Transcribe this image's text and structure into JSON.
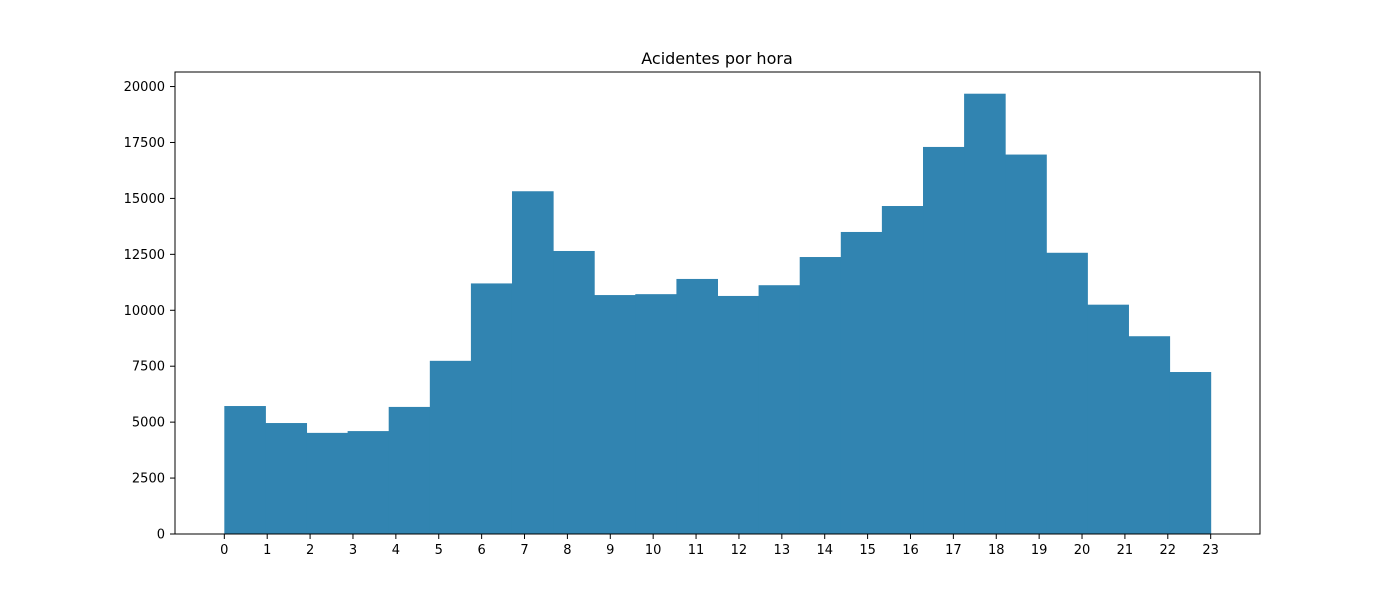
{
  "chart_data": {
    "type": "bar",
    "title": "Acidentes por hora",
    "xlabel": "",
    "ylabel": "",
    "bar_color": "#3184b1",
    "grid": false,
    "x_ticks": [
      "0",
      "1",
      "2",
      "3",
      "4",
      "5",
      "6",
      "7",
      "8",
      "9",
      "10",
      "11",
      "12",
      "13",
      "14",
      "15",
      "16",
      "17",
      "18",
      "19",
      "20",
      "21",
      "22",
      "23"
    ],
    "y_ticks": [
      "0",
      "2500",
      "5000",
      "7500",
      "10000",
      "12500",
      "15000",
      "17500",
      "20000"
    ],
    "xlim": [
      -1.15,
      24.15
    ],
    "ylim": [
      0,
      20650
    ],
    "bins": [
      {
        "start": 0.0,
        "end": 0.958,
        "value": 5720
      },
      {
        "start": 0.958,
        "end": 1.917,
        "value": 4960
      },
      {
        "start": 1.917,
        "end": 2.875,
        "value": 4520
      },
      {
        "start": 2.875,
        "end": 3.833,
        "value": 4600
      },
      {
        "start": 3.833,
        "end": 4.792,
        "value": 5680
      },
      {
        "start": 4.792,
        "end": 5.75,
        "value": 7740
      },
      {
        "start": 5.75,
        "end": 6.708,
        "value": 11200
      },
      {
        "start": 6.708,
        "end": 7.667,
        "value": 15320
      },
      {
        "start": 7.667,
        "end": 8.625,
        "value": 12650
      },
      {
        "start": 8.625,
        "end": 9.583,
        "value": 10680
      },
      {
        "start": 9.583,
        "end": 10.542,
        "value": 10720
      },
      {
        "start": 10.542,
        "end": 11.5,
        "value": 11400
      },
      {
        "start": 11.5,
        "end": 12.458,
        "value": 10640
      },
      {
        "start": 12.458,
        "end": 13.417,
        "value": 11120
      },
      {
        "start": 13.417,
        "end": 14.375,
        "value": 12380
      },
      {
        "start": 14.375,
        "end": 15.333,
        "value": 13500
      },
      {
        "start": 15.333,
        "end": 16.292,
        "value": 14660
      },
      {
        "start": 16.292,
        "end": 17.25,
        "value": 17300
      },
      {
        "start": 17.25,
        "end": 18.208,
        "value": 19680
      },
      {
        "start": 18.208,
        "end": 19.167,
        "value": 16960
      },
      {
        "start": 19.167,
        "end": 20.125,
        "value": 12570
      },
      {
        "start": 20.125,
        "end": 21.083,
        "value": 10250
      },
      {
        "start": 21.083,
        "end": 22.042,
        "value": 8840
      },
      {
        "start": 22.042,
        "end": 23.0,
        "value": 7240
      }
    ]
  }
}
